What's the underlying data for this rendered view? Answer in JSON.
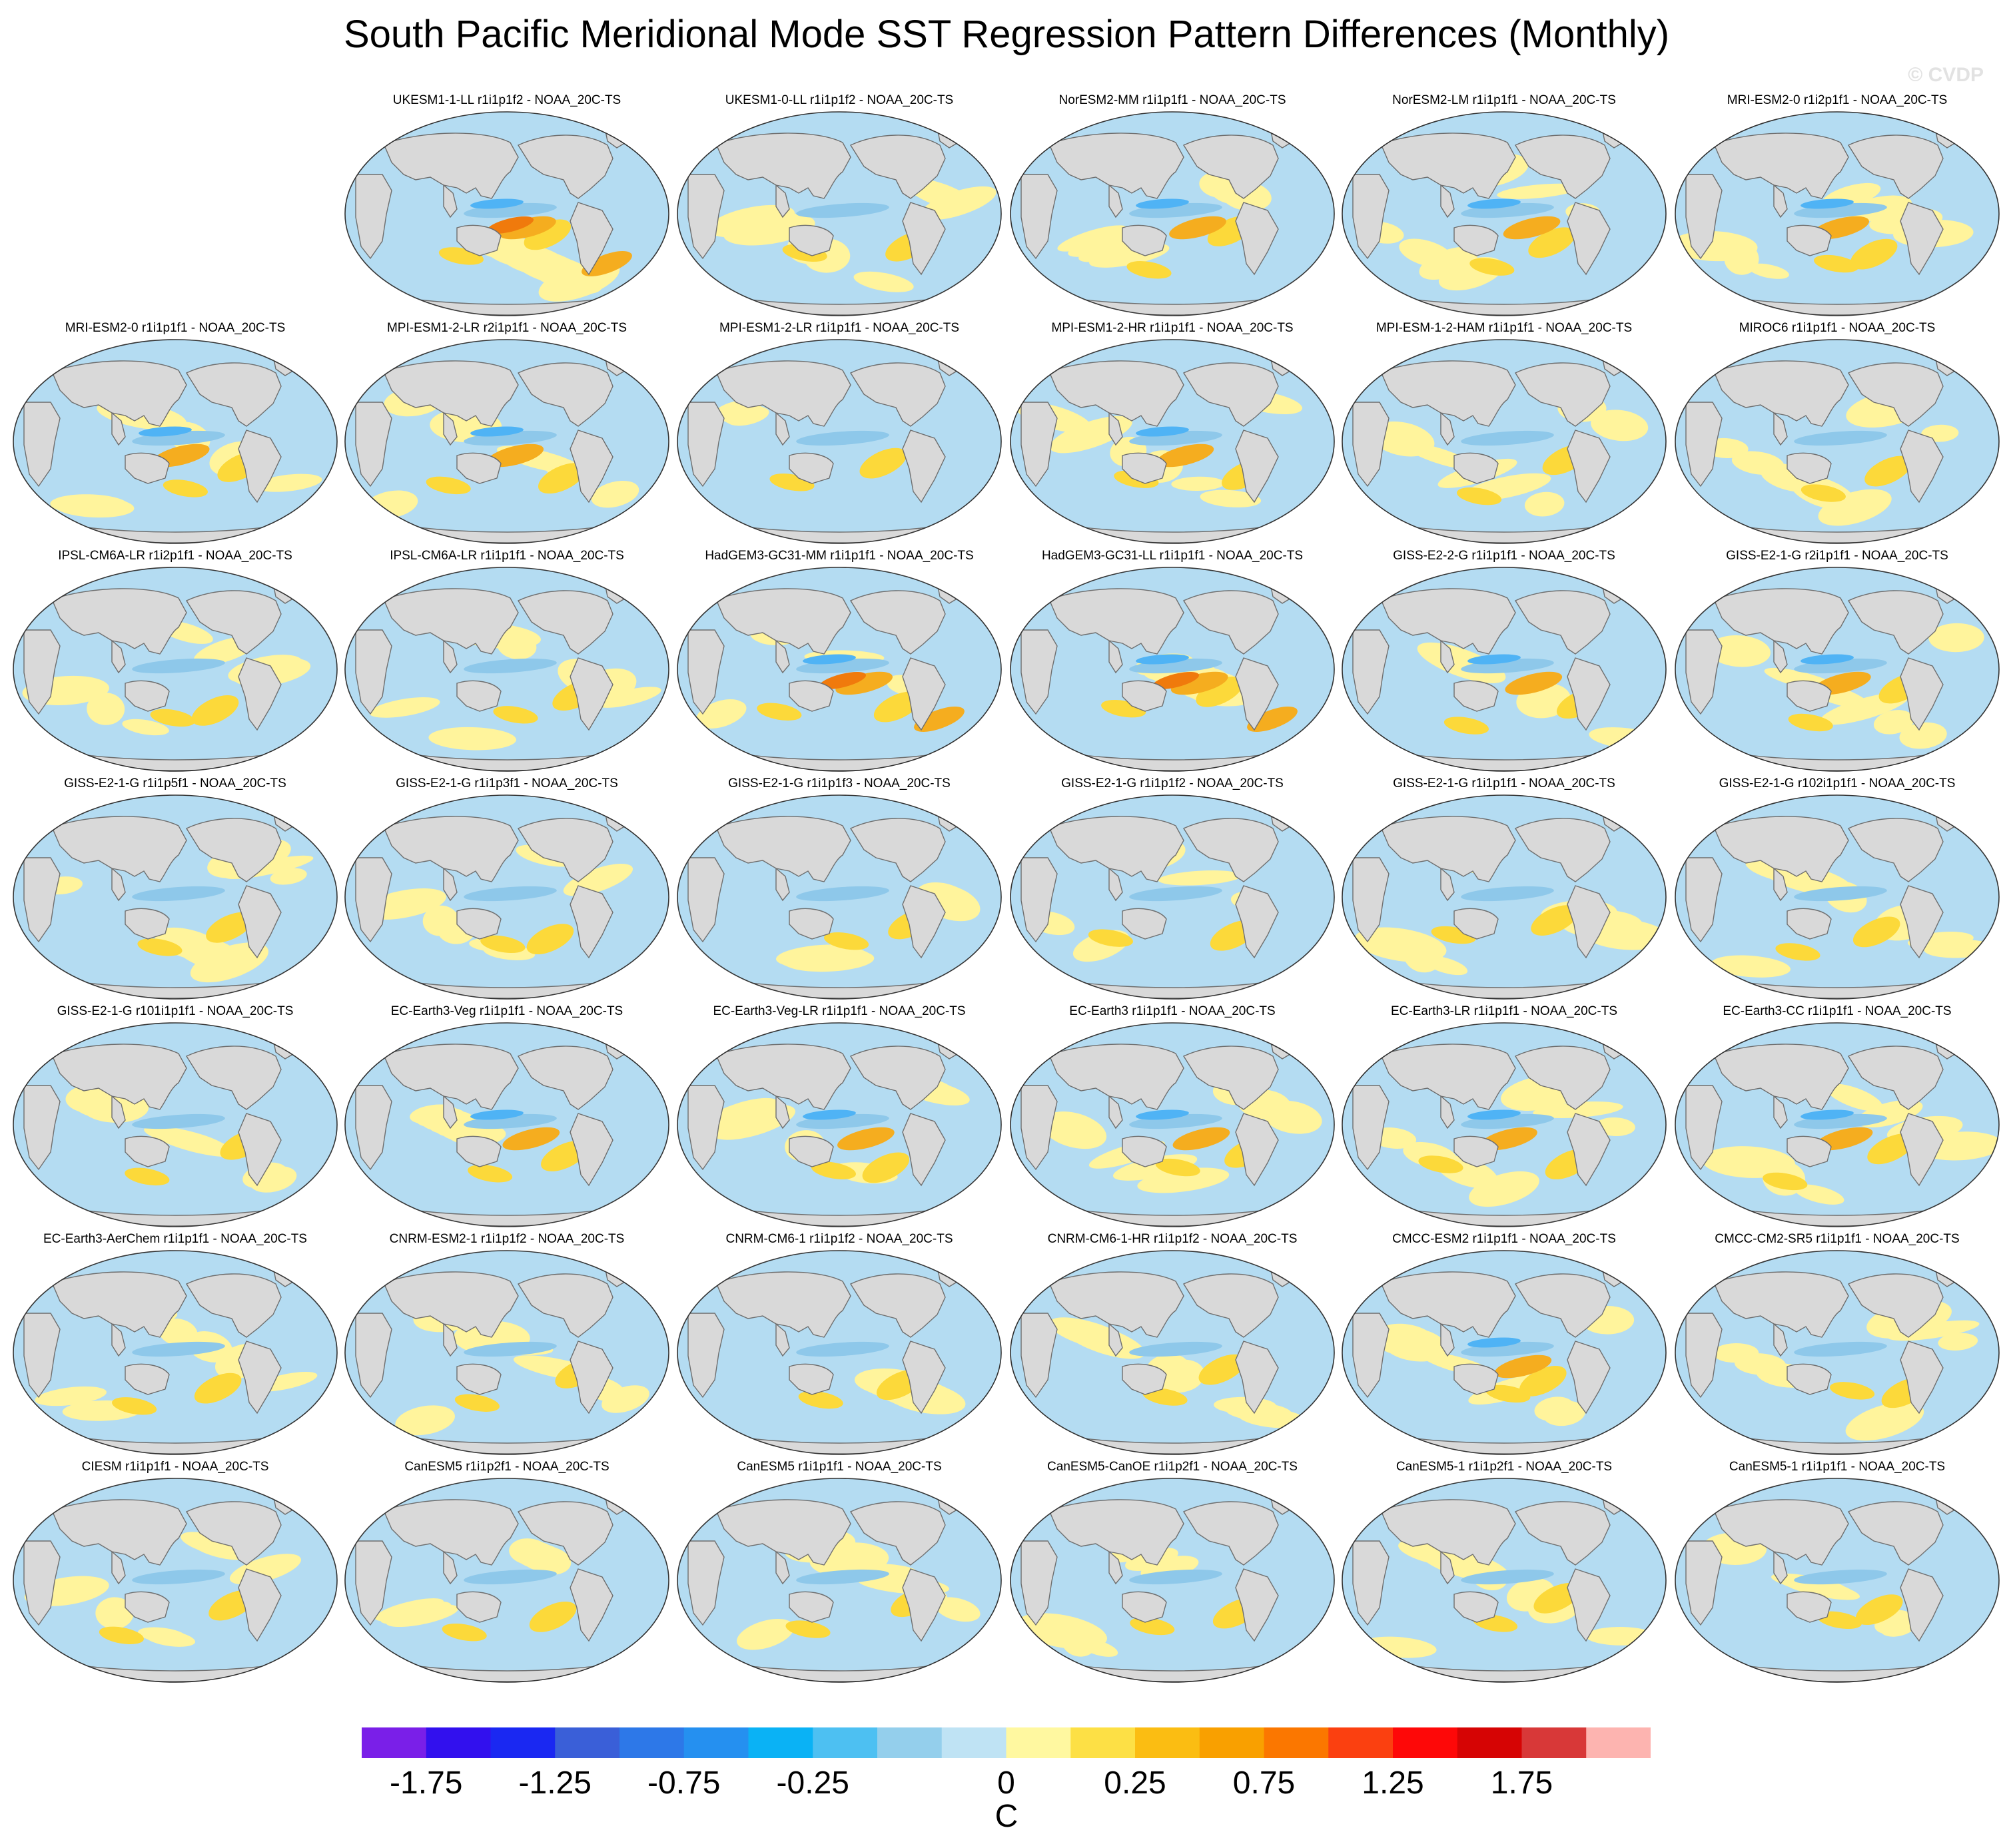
{
  "title": "South Pacific Meridional Mode SST Regression Pattern Differences (Monthly)",
  "watermark": "© CVDP",
  "colors": {
    "land": "#d9d9d9",
    "coast": "#6e6e6e",
    "ocean_neg_weak": "#b4dcf2",
    "ocean_pos_weak": "#fff49c",
    "pos_mid": "#fcd93a",
    "pos_strong": "#f5ad1f",
    "pos_stronger": "#f07a0c",
    "neg_mid": "#8ec8ea",
    "neg_strong": "#4fb3f5"
  },
  "panels": [
    {
      "label": "UKESM1-1-LL r1i1p1f2 - NOAA_20C-TS",
      "icon": "map-strong"
    },
    {
      "label": "UKESM1-0-LL r1i1p1f2 - NOAA_20C-TS",
      "icon": "map-weak"
    },
    {
      "label": "NorESM2-MM r1i1p1f1 - NOAA_20C-TS",
      "icon": "map-mid"
    },
    {
      "label": "NorESM2-LM r1i1p1f1 - NOAA_20C-TS",
      "icon": "map-mid"
    },
    {
      "label": "MRI-ESM2-0 r1i2p1f1 - NOAA_20C-TS",
      "icon": "map-mid"
    },
    {
      "label": "MRI-ESM2-0 r1i1p1f1 - NOAA_20C-TS",
      "icon": "map-mid"
    },
    {
      "label": "MPI-ESM1-2-LR r2i1p1f1 - NOAA_20C-TS",
      "icon": "map-mid"
    },
    {
      "label": "MPI-ESM1-2-LR r1i1p1f1 - NOAA_20C-TS",
      "icon": "map-weak"
    },
    {
      "label": "MPI-ESM1-2-HR r1i1p1f1 - NOAA_20C-TS",
      "icon": "map-mid"
    },
    {
      "label": "MPI-ESM-1-2-HAM r1i1p1f1 - NOAA_20C-TS",
      "icon": "map-weak"
    },
    {
      "label": "MIROC6 r1i1p1f1 - NOAA_20C-TS",
      "icon": "map-weak"
    },
    {
      "label": "IPSL-CM6A-LR r1i2p1f1 - NOAA_20C-TS",
      "icon": "map-weak"
    },
    {
      "label": "IPSL-CM6A-LR r1i1p1f1 - NOAA_20C-TS",
      "icon": "map-weak"
    },
    {
      "label": "HadGEM3-GC31-MM r1i1p1f1 - NOAA_20C-TS",
      "icon": "map-strong"
    },
    {
      "label": "HadGEM3-GC31-LL r1i1p1f1 - NOAA_20C-TS",
      "icon": "map-strong"
    },
    {
      "label": "GISS-E2-2-G r1i1p1f1 - NOAA_20C-TS",
      "icon": "map-mid"
    },
    {
      "label": "GISS-E2-1-G r2i1p1f1 - NOAA_20C-TS",
      "icon": "map-mid"
    },
    {
      "label": "GISS-E2-1-G r1i1p5f1 - NOAA_20C-TS",
      "icon": "map-weak"
    },
    {
      "label": "GISS-E2-1-G r1i1p3f1 - NOAA_20C-TS",
      "icon": "map-weak"
    },
    {
      "label": "GISS-E2-1-G r1i1p1f3 - NOAA_20C-TS",
      "icon": "map-weak"
    },
    {
      "label": "GISS-E2-1-G r1i1p1f2 - NOAA_20C-TS",
      "icon": "map-weak"
    },
    {
      "label": "GISS-E2-1-G r1i1p1f1 - NOAA_20C-TS",
      "icon": "map-weak"
    },
    {
      "label": "GISS-E2-1-G r102i1p1f1 - NOAA_20C-TS",
      "icon": "map-weak"
    },
    {
      "label": "GISS-E2-1-G r101i1p1f1 - NOAA_20C-TS",
      "icon": "map-weak"
    },
    {
      "label": "EC-Earth3-Veg r1i1p1f1 - NOAA_20C-TS",
      "icon": "map-mid"
    },
    {
      "label": "EC-Earth3-Veg-LR r1i1p1f1 - NOAA_20C-TS",
      "icon": "map-mid"
    },
    {
      "label": "EC-Earth3 r1i1p1f1 - NOAA_20C-TS",
      "icon": "map-mid"
    },
    {
      "label": "EC-Earth3-LR r1i1p1f1 - NOAA_20C-TS",
      "icon": "map-mid"
    },
    {
      "label": "EC-Earth3-CC r1i1p1f1 - NOAA_20C-TS",
      "icon": "map-mid"
    },
    {
      "label": "EC-Earth3-AerChem r1i1p1f1 - NOAA_20C-TS",
      "icon": "map-weak"
    },
    {
      "label": "CNRM-ESM2-1 r1i1p1f2 - NOAA_20C-TS",
      "icon": "map-weak"
    },
    {
      "label": "CNRM-CM6-1 r1i1p1f2 - NOAA_20C-TS",
      "icon": "map-weak"
    },
    {
      "label": "CNRM-CM6-1-HR r1i1p1f2 - NOAA_20C-TS",
      "icon": "map-weak"
    },
    {
      "label": "CMCC-ESM2 r1i1p1f1 - NOAA_20C-TS",
      "icon": "map-mid"
    },
    {
      "label": "CMCC-CM2-SR5 r1i1p1f1 - NOAA_20C-TS",
      "icon": "map-weak"
    },
    {
      "label": "CIESM r1i1p1f1 - NOAA_20C-TS",
      "icon": "map-weak"
    },
    {
      "label": "CanESM5 r1i1p2f1 - NOAA_20C-TS",
      "icon": "map-weak"
    },
    {
      "label": "CanESM5 r1i1p1f1 - NOAA_20C-TS",
      "icon": "map-weak"
    },
    {
      "label": "CanESM5-CanOE r1i1p2f1 - NOAA_20C-TS",
      "icon": "map-weak"
    },
    {
      "label": "CanESM5-1 r1i1p2f1 - NOAA_20C-TS",
      "icon": "map-weak"
    },
    {
      "label": "CanESM5-1 r1i1p1f1 - NOAA_20C-TS",
      "icon": "map-weak"
    }
  ],
  "colorbar": {
    "units": "C",
    "labels": [
      "-1.75",
      "-1.25",
      "-0.75",
      "-0.25",
      "0",
      "0.25",
      "0.75",
      "1.25",
      "1.75"
    ],
    "label_boundaries": [
      1,
      3,
      5,
      7,
      10,
      12,
      14,
      16,
      18
    ],
    "colors": [
      "#7a1fe8",
      "#3210ee",
      "#1a28f2",
      "#3a5fd8",
      "#2d78e8",
      "#2590f0",
      "#0ab2f5",
      "#4dc0f2",
      "#94cfec",
      "#bfe3f4",
      "#fff8a0",
      "#fde045",
      "#fbbd12",
      "#f9a000",
      "#fb7700",
      "#fb4010",
      "#fe0808",
      "#d60404",
      "#d83838",
      "#fdb4b0"
    ]
  }
}
